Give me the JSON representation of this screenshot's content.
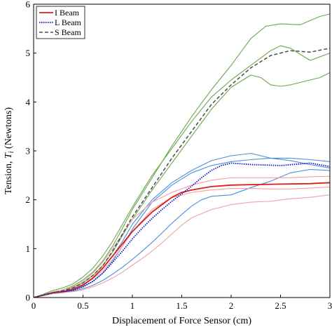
{
  "chart_data": {
    "type": "line",
    "title": "",
    "xlabel": "Displacement of Force Sensor (cm)",
    "ylabel_main": "Tension, ",
    "ylabel_symbol": "T",
    "ylabel_subscript": "i",
    "ylabel_unit": " (Newtons)",
    "xlim": [
      0,
      3
    ],
    "ylim": [
      0,
      6
    ],
    "xticks": [
      0,
      0.5,
      1,
      1.5,
      2,
      2.5,
      3
    ],
    "xtick_labels": [
      "0",
      "0.5",
      "1",
      "1.5",
      "2",
      "2.5",
      "3"
    ],
    "yticks": [
      0,
      1,
      2,
      3,
      4,
      5,
      6
    ],
    "ytick_labels": [
      "0",
      "1",
      "2",
      "3",
      "4",
      "5",
      "6"
    ],
    "grid": false,
    "legend_position": "top-left",
    "legend": [
      {
        "label": "I Beam",
        "color": "#dd1c1c",
        "style": "solid"
      },
      {
        "label": "L Beam",
        "color": "#1010cc",
        "style": "dotted"
      },
      {
        "label": "S Beam",
        "color": "#4a4a4a",
        "style": "dashed"
      }
    ],
    "series": [
      {
        "name": "I Beam",
        "color": "#dd1c1c",
        "style": "solid",
        "width": 1.8,
        "x": [
          0,
          0.1,
          0.2,
          0.3,
          0.4,
          0.5,
          0.6,
          0.7,
          0.8,
          0.9,
          1.0,
          1.1,
          1.2,
          1.3,
          1.4,
          1.5,
          1.6,
          1.8,
          2.0,
          2.2,
          2.5,
          2.8,
          3.0
        ],
        "y": [
          0,
          0.05,
          0.1,
          0.12,
          0.17,
          0.25,
          0.4,
          0.6,
          0.85,
          1.1,
          1.35,
          1.55,
          1.75,
          1.9,
          2.05,
          2.15,
          2.2,
          2.27,
          2.3,
          2.31,
          2.32,
          2.33,
          2.35
        ]
      },
      {
        "name": "L Beam",
        "color": "#1010cc",
        "style": "dotted",
        "width": 1.8,
        "x": [
          0,
          0.1,
          0.2,
          0.3,
          0.4,
          0.5,
          0.6,
          0.7,
          0.8,
          0.9,
          1.0,
          1.1,
          1.2,
          1.3,
          1.4,
          1.5,
          1.6,
          1.7,
          1.8,
          1.9,
          2.0,
          2.2,
          2.5,
          2.8,
          3.0
        ],
        "y": [
          0,
          0.05,
          0.1,
          0.12,
          0.15,
          0.22,
          0.33,
          0.5,
          0.72,
          0.95,
          1.2,
          1.42,
          1.62,
          1.8,
          1.97,
          2.12,
          2.28,
          2.45,
          2.6,
          2.7,
          2.75,
          2.72,
          2.7,
          2.75,
          2.68
        ]
      },
      {
        "name": "S Beam",
        "color": "#4a4a4a",
        "style": "dashed",
        "width": 1.5,
        "x": [
          0,
          0.1,
          0.2,
          0.3,
          0.4,
          0.5,
          0.6,
          0.7,
          0.8,
          0.9,
          1.0,
          1.2,
          1.4,
          1.6,
          1.8,
          2.0,
          2.2,
          2.4,
          2.6,
          2.8,
          3.0
        ],
        "y": [
          0,
          0.05,
          0.1,
          0.14,
          0.2,
          0.3,
          0.45,
          0.65,
          0.95,
          1.3,
          1.65,
          2.25,
          2.85,
          3.4,
          3.95,
          4.35,
          4.7,
          4.95,
          5.05,
          5.02,
          5.1
        ]
      },
      {
        "name": "",
        "color": "#6aa84f",
        "style": "solid",
        "width": 1.1,
        "x": [
          0,
          0.1,
          0.2,
          0.3,
          0.4,
          0.5,
          0.6,
          0.7,
          0.8,
          0.9,
          1.0,
          1.2,
          1.4,
          1.6,
          1.8,
          2.0,
          2.2,
          2.35,
          2.5,
          2.7,
          2.9,
          3.0
        ],
        "y": [
          0,
          0.06,
          0.12,
          0.16,
          0.24,
          0.36,
          0.52,
          0.75,
          1.05,
          1.42,
          1.8,
          2.45,
          3.1,
          3.7,
          4.25,
          4.75,
          5.3,
          5.55,
          5.6,
          5.58,
          5.75,
          5.8
        ]
      },
      {
        "name": "",
        "color": "#6aa84f",
        "style": "solid",
        "width": 1.1,
        "x": [
          0,
          0.1,
          0.2,
          0.3,
          0.4,
          0.5,
          0.6,
          0.7,
          0.8,
          0.9,
          1.0,
          1.2,
          1.4,
          1.6,
          1.8,
          2.0,
          2.2,
          2.3,
          2.4,
          2.5,
          2.6,
          2.7,
          2.8,
          2.9,
          3.0
        ],
        "y": [
          0,
          0.05,
          0.1,
          0.13,
          0.2,
          0.3,
          0.45,
          0.65,
          0.93,
          1.27,
          1.6,
          2.2,
          2.75,
          3.3,
          3.85,
          4.3,
          4.55,
          4.5,
          4.35,
          4.32,
          4.35,
          4.4,
          4.45,
          4.5,
          4.6
        ]
      },
      {
        "name": "",
        "color": "#6aa84f",
        "style": "solid",
        "width": 1.1,
        "x": [
          0,
          0.1,
          0.2,
          0.3,
          0.4,
          0.5,
          0.6,
          0.7,
          0.8,
          0.9,
          1.0,
          1.2,
          1.4,
          1.6,
          1.8,
          2.0,
          2.2,
          2.4,
          2.5,
          2.6,
          2.8,
          3.0
        ],
        "y": [
          0,
          0.07,
          0.15,
          0.2,
          0.28,
          0.42,
          0.6,
          0.85,
          1.15,
          1.5,
          1.85,
          2.5,
          3.05,
          3.6,
          4.1,
          4.45,
          4.75,
          5.05,
          5.15,
          5.1,
          4.85,
          5.0
        ]
      },
      {
        "name": "",
        "color": "#4a90d9",
        "style": "solid",
        "width": 1.1,
        "x": [
          0,
          0.1,
          0.2,
          0.3,
          0.4,
          0.5,
          0.6,
          0.7,
          0.8,
          0.9,
          1.0,
          1.2,
          1.4,
          1.6,
          1.8,
          2.0,
          2.2,
          2.4,
          2.6,
          2.8,
          3.0
        ],
        "y": [
          0,
          0.05,
          0.1,
          0.12,
          0.18,
          0.27,
          0.4,
          0.6,
          0.85,
          1.15,
          1.5,
          2.0,
          2.35,
          2.6,
          2.8,
          2.9,
          2.95,
          2.85,
          2.85,
          2.82,
          2.78
        ]
      },
      {
        "name": "",
        "color": "#4a90d9",
        "style": "solid",
        "width": 1.1,
        "x": [
          0,
          0.1,
          0.2,
          0.3,
          0.4,
          0.5,
          0.6,
          0.7,
          0.8,
          0.9,
          1.0,
          1.2,
          1.4,
          1.6,
          1.8,
          2.0,
          2.2,
          2.4,
          2.6,
          2.8,
          3.0
        ],
        "y": [
          0,
          0.04,
          0.08,
          0.1,
          0.15,
          0.22,
          0.33,
          0.5,
          0.75,
          1.05,
          1.4,
          1.95,
          2.3,
          2.55,
          2.7,
          2.78,
          2.82,
          2.85,
          2.8,
          2.72,
          2.65
        ]
      },
      {
        "name": "",
        "color": "#4a90d9",
        "style": "solid",
        "width": 1.1,
        "x": [
          0,
          0.1,
          0.2,
          0.3,
          0.4,
          0.5,
          0.6,
          0.7,
          0.8,
          0.9,
          1.0,
          1.1,
          1.2,
          1.3,
          1.4,
          1.5,
          1.6,
          1.7,
          1.8,
          2.0,
          2.2,
          2.4,
          2.6,
          2.8,
          3.0
        ],
        "y": [
          0,
          0.04,
          0.08,
          0.1,
          0.13,
          0.18,
          0.25,
          0.35,
          0.48,
          0.62,
          0.78,
          0.95,
          1.13,
          1.32,
          1.52,
          1.7,
          1.87,
          2.0,
          2.07,
          2.1,
          2.25,
          2.38,
          2.55,
          2.62,
          2.6
        ]
      },
      {
        "name": "",
        "color": "#f2a0a0",
        "style": "solid",
        "width": 1.1,
        "x": [
          0,
          0.1,
          0.2,
          0.3,
          0.4,
          0.5,
          0.6,
          0.7,
          0.8,
          0.9,
          1.0,
          1.2,
          1.4,
          1.6,
          1.8,
          2.0,
          2.2,
          2.4,
          2.6,
          2.8,
          3.0
        ],
        "y": [
          0,
          0.06,
          0.12,
          0.16,
          0.22,
          0.33,
          0.5,
          0.72,
          1.0,
          1.3,
          1.6,
          1.95,
          2.15,
          2.3,
          2.4,
          2.45,
          2.45,
          2.45,
          2.45,
          2.47,
          2.48
        ]
      },
      {
        "name": "",
        "color": "#f2a0a0",
        "style": "solid",
        "width": 1.1,
        "x": [
          0,
          0.1,
          0.2,
          0.3,
          0.4,
          0.5,
          0.6,
          0.7,
          0.8,
          0.9,
          1.0,
          1.2,
          1.4,
          1.6,
          1.8,
          2.0,
          2.2,
          2.4,
          2.6,
          2.8,
          3.0
        ],
        "y": [
          0,
          0.05,
          0.1,
          0.13,
          0.18,
          0.26,
          0.38,
          0.55,
          0.78,
          1.05,
          1.35,
          1.8,
          2.05,
          2.15,
          2.2,
          2.23,
          2.23,
          2.22,
          2.22,
          2.24,
          2.26
        ]
      },
      {
        "name": "",
        "color": "#f2a0a0",
        "style": "solid",
        "width": 1.1,
        "x": [
          0,
          0.1,
          0.2,
          0.3,
          0.4,
          0.5,
          0.6,
          0.7,
          0.8,
          0.9,
          1.0,
          1.1,
          1.2,
          1.3,
          1.4,
          1.5,
          1.6,
          1.8,
          2.0,
          2.2,
          2.4,
          2.6,
          2.8,
          3.0
        ],
        "y": [
          0,
          0.04,
          0.08,
          0.1,
          0.12,
          0.16,
          0.22,
          0.3,
          0.4,
          0.52,
          0.66,
          0.8,
          0.95,
          1.12,
          1.3,
          1.48,
          1.63,
          1.8,
          1.9,
          1.95,
          1.97,
          2.02,
          2.05,
          2.1
        ]
      }
    ]
  }
}
